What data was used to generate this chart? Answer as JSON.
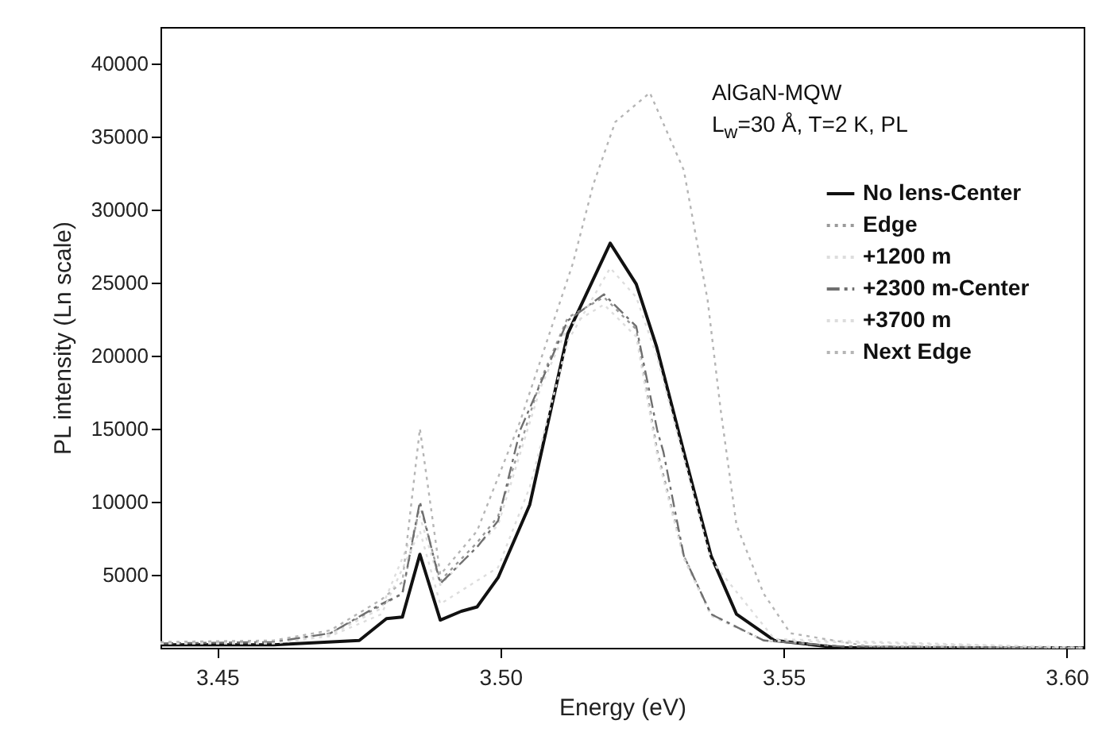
{
  "chart_data": {
    "type": "line",
    "xlabel": "Energy (eV)",
    "ylabel": "PL intensity (Ln scale)",
    "xlim": [
      3.44,
      3.603
    ],
    "xticks": [
      {
        "value": 3.45,
        "label": "3.45"
      },
      {
        "value": 3.5,
        "label": "3.50"
      },
      {
        "value": 3.55,
        "label": "3.55"
      },
      {
        "value": 3.6,
        "label": "3.60"
      }
    ],
    "ylim": [
      0,
      42500
    ],
    "yticks": [
      5000,
      10000,
      15000,
      20000,
      25000,
      30000,
      35000,
      40000
    ],
    "grid": false,
    "legend": "top right",
    "marker": "none",
    "annotations": [
      "AlGaN-MQW",
      "L$_{w}$=30 Å, T=2 K, PL"
    ],
    "series": [
      {
        "name": "No lens-Center",
        "color": "#111111",
        "line_style": "solid",
        "x": [
          3.44,
          3.46,
          3.4751,
          3.4799,
          3.4827,
          3.4858,
          3.4894,
          3.4931,
          3.4959,
          3.4996,
          3.5052,
          3.5119,
          3.5194,
          3.524,
          3.5276,
          3.5324,
          3.5372,
          3.5417,
          3.5484,
          3.56,
          3.603
        ],
        "values": [
          200,
          200,
          500,
          2000,
          2100,
          6400,
          1900,
          2500,
          2800,
          4800,
          9800,
          21500,
          27700,
          24900,
          20600,
          13400,
          6300,
          2300,
          500,
          0,
          0
        ]
      },
      {
        "name": "Edge",
        "color": "#9a9a9a",
        "line_style": "dotted",
        "x": [
          3.44,
          3.46,
          3.47,
          3.479,
          3.4827,
          3.4858,
          3.4894,
          3.4959,
          3.4996,
          3.5071,
          3.5119,
          3.5183,
          3.524,
          3.5277,
          3.5324,
          3.5372,
          3.5465,
          3.56,
          3.603
        ],
        "values": [
          300,
          400,
          1000,
          2900,
          3700,
          9800,
          4600,
          7200,
          9000,
          18300,
          22600,
          24000,
          21800,
          13500,
          6300,
          2300,
          500,
          100,
          0
        ]
      },
      {
        "name": "+1200 m",
        "color": "#dddddd",
        "line_style": "dotted",
        "x": [
          3.44,
          3.46,
          3.47,
          3.479,
          3.4858,
          3.4894,
          3.4996,
          3.5071,
          3.5119,
          3.5183,
          3.524,
          3.5277,
          3.5324,
          3.5372,
          3.5465,
          3.603
        ],
        "values": [
          300,
          400,
          900,
          2700,
          9000,
          4300,
          8400,
          17800,
          22000,
          23500,
          21300,
          13200,
          6100,
          2200,
          500,
          0
        ]
      },
      {
        "name": "+2300 m-Center",
        "color": "#6f6f6f",
        "line_style": "dashed",
        "x": [
          3.44,
          3.46,
          3.47,
          3.479,
          3.4827,
          3.4858,
          3.4894,
          3.4959,
          3.4996,
          3.5035,
          3.5071,
          3.5119,
          3.5183,
          3.524,
          3.5277,
          3.5288,
          3.5324,
          3.5372,
          3.5465,
          3.56,
          3.603
        ],
        "values": [
          300,
          400,
          1000,
          3000,
          3700,
          10000,
          4400,
          6900,
          8700,
          14900,
          18100,
          22400,
          24200,
          22000,
          14900,
          13400,
          6300,
          2300,
          500,
          100,
          0
        ]
      },
      {
        "name": "+3700 m",
        "color": "#dddddd",
        "line_style": "dotted",
        "x": [
          3.44,
          3.46,
          3.47,
          3.479,
          3.4858,
          3.4894,
          3.4996,
          3.5052,
          3.5119,
          3.5194,
          3.524,
          3.5276,
          3.5324,
          3.5372,
          3.5484,
          3.603
        ],
        "values": [
          300,
          300,
          800,
          2300,
          8000,
          3000,
          5500,
          11000,
          21000,
          26000,
          24000,
          20000,
          13000,
          6000,
          600,
          0
        ]
      },
      {
        "name": "Next Edge",
        "color": "#b5b5b5",
        "line_style": "dotted",
        "x": [
          3.44,
          3.46,
          3.47,
          3.479,
          3.4827,
          3.4858,
          3.4894,
          3.4959,
          3.5035,
          3.5128,
          3.5164,
          3.5203,
          3.5264,
          3.5324,
          3.5366,
          3.5389,
          3.5417,
          3.5465,
          3.5512,
          3.565,
          3.603
        ],
        "values": [
          400,
          500,
          1200,
          3300,
          4500,
          15000,
          5000,
          8000,
          15500,
          26300,
          31700,
          36000,
          38000,
          32700,
          23800,
          16300,
          8400,
          3700,
          1000,
          100,
          0
        ]
      }
    ]
  }
}
